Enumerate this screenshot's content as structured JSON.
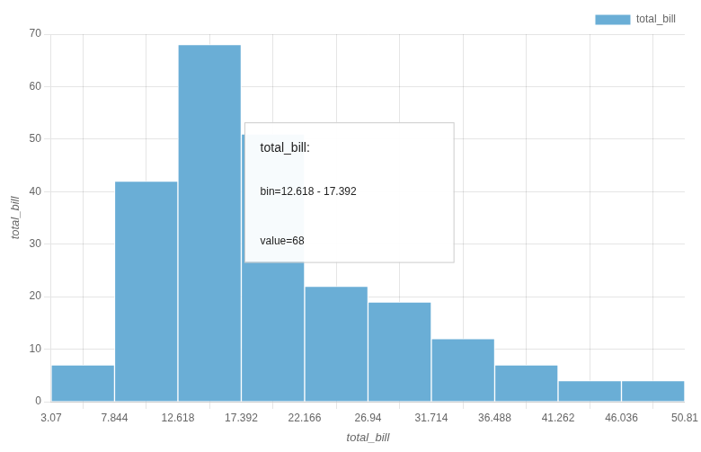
{
  "chart_data": {
    "type": "histogram",
    "bins": [
      3.07,
      7.844,
      12.618,
      17.392,
      22.166,
      26.94,
      31.714,
      36.488,
      41.262,
      46.036,
      50.81
    ],
    "series": [
      {
        "name": "total_bill",
        "color": "#6aaed6",
        "values": [
          7,
          42,
          68,
          51,
          22,
          19,
          12,
          7,
          4,
          4
        ]
      }
    ],
    "xlabel": "total_bill",
    "ylabel": "total_bill",
    "xlim": [
      3.07,
      50.81
    ],
    "xticks": [
      3.07,
      7.844,
      12.618,
      17.392,
      22.166,
      26.94,
      31.714,
      36.488,
      41.262,
      46.036,
      50.81
    ],
    "ylim": [
      0,
      70
    ],
    "yticks": [
      0,
      10,
      20,
      30,
      40,
      50,
      60,
      70
    ],
    "grid": true,
    "legend": "upper right",
    "annotations": [
      "total_bill:",
      "bin=12.618 - 17.392",
      "value=68"
    ]
  }
}
